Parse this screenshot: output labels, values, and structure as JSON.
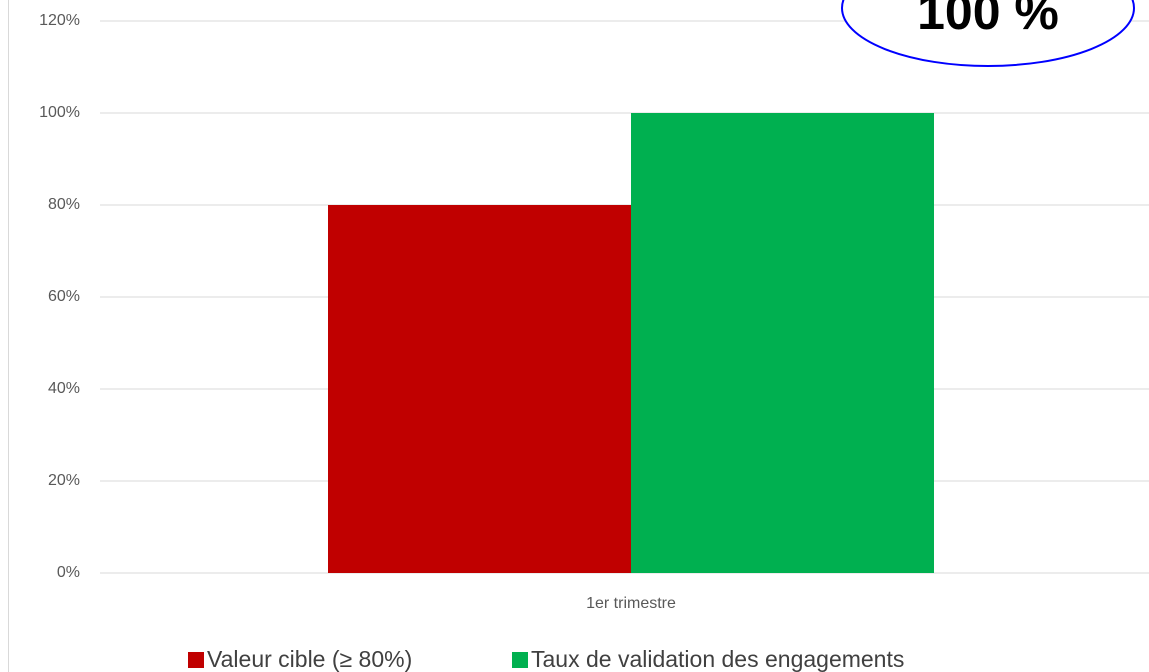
{
  "chart_data": {
    "type": "bar",
    "categories": [
      "1er trimestre"
    ],
    "series": [
      {
        "name": "Valeur cible (≥ 80%)",
        "color": "#c00000",
        "values": [
          80
        ]
      },
      {
        "name": "Taux de validation des engagements",
        "color": "#00b050",
        "values": [
          100
        ]
      }
    ],
    "ylim": [
      0,
      120
    ],
    "yticks": [
      {
        "value": 0,
        "label": "0%"
      },
      {
        "value": 20,
        "label": "20%"
      },
      {
        "value": 40,
        "label": "40%"
      },
      {
        "value": 60,
        "label": "60%"
      },
      {
        "value": 80,
        "label": "80%"
      },
      {
        "value": 100,
        "label": "100%"
      },
      {
        "value": 120,
        "label": "120%"
      }
    ],
    "grid": true,
    "legend": "bottom",
    "annotation": "100 %"
  }
}
